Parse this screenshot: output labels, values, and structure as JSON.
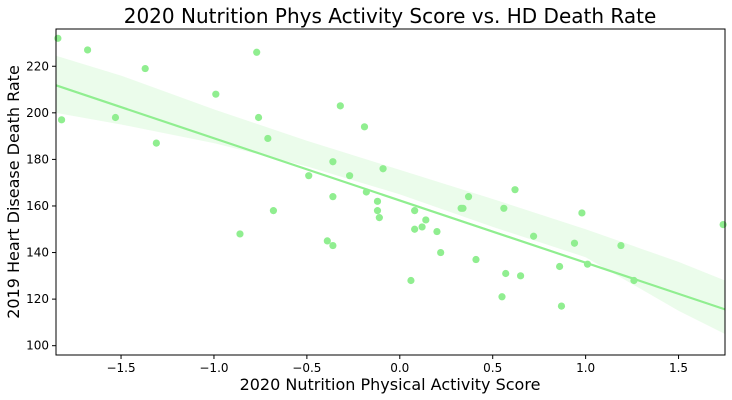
{
  "chart_data": {
    "type": "scatter",
    "title": "2020 Nutrition Phys Activity Score vs. HD Death Rate",
    "xlabel": "2020 Nutrition Physical Activity Score",
    "ylabel": "2019 Heart Disease Death Rate",
    "xlim": [
      -1.85,
      1.75
    ],
    "ylim": [
      96,
      236
    ],
    "x_ticks": [
      -1.5,
      -1.0,
      -0.5,
      0.0,
      0.5,
      1.0,
      1.5
    ],
    "x_tick_labels": [
      "−1.5",
      "−1.0",
      "−0.5",
      "0.0",
      "0.5",
      "1.0",
      "1.5"
    ],
    "y_ticks": [
      100,
      120,
      140,
      160,
      180,
      200,
      220
    ],
    "y_tick_labels": [
      "100",
      "120",
      "140",
      "160",
      "180",
      "200",
      "220"
    ],
    "grid": false,
    "legend": "none",
    "colors": {
      "points": "#90ee90",
      "fit_line": "#90ee90",
      "confidence_band": "#90ee90"
    },
    "points": [
      {
        "x": -1.84,
        "y": 232
      },
      {
        "x": -1.82,
        "y": 197
      },
      {
        "x": -1.68,
        "y": 227
      },
      {
        "x": -1.53,
        "y": 198
      },
      {
        "x": -1.37,
        "y": 219
      },
      {
        "x": -1.31,
        "y": 187
      },
      {
        "x": -0.99,
        "y": 208
      },
      {
        "x": -0.86,
        "y": 148
      },
      {
        "x": -0.77,
        "y": 226
      },
      {
        "x": -0.76,
        "y": 198
      },
      {
        "x": -0.71,
        "y": 189
      },
      {
        "x": -0.68,
        "y": 158
      },
      {
        "x": -0.49,
        "y": 173
      },
      {
        "x": -0.39,
        "y": 145
      },
      {
        "x": -0.36,
        "y": 143
      },
      {
        "x": -0.36,
        "y": 179
      },
      {
        "x": -0.36,
        "y": 164
      },
      {
        "x": -0.32,
        "y": 203
      },
      {
        "x": -0.27,
        "y": 173
      },
      {
        "x": -0.19,
        "y": 194
      },
      {
        "x": -0.18,
        "y": 166
      },
      {
        "x": -0.12,
        "y": 162
      },
      {
        "x": -0.12,
        "y": 158
      },
      {
        "x": -0.11,
        "y": 155
      },
      {
        "x": -0.09,
        "y": 176
      },
      {
        "x": 0.06,
        "y": 128
      },
      {
        "x": 0.08,
        "y": 158
      },
      {
        "x": 0.08,
        "y": 150
      },
      {
        "x": 0.12,
        "y": 151
      },
      {
        "x": 0.14,
        "y": 154
      },
      {
        "x": 0.2,
        "y": 149
      },
      {
        "x": 0.22,
        "y": 140
      },
      {
        "x": 0.33,
        "y": 159
      },
      {
        "x": 0.34,
        "y": 159
      },
      {
        "x": 0.37,
        "y": 164
      },
      {
        "x": 0.41,
        "y": 137
      },
      {
        "x": 0.55,
        "y": 121
      },
      {
        "x": 0.56,
        "y": 159
      },
      {
        "x": 0.57,
        "y": 131
      },
      {
        "x": 0.62,
        "y": 167
      },
      {
        "x": 0.65,
        "y": 130
      },
      {
        "x": 0.72,
        "y": 147
      },
      {
        "x": 0.86,
        "y": 134
      },
      {
        "x": 0.87,
        "y": 117
      },
      {
        "x": 0.94,
        "y": 144
      },
      {
        "x": 0.98,
        "y": 157
      },
      {
        "x": 1.01,
        "y": 135
      },
      {
        "x": 1.19,
        "y": 143
      },
      {
        "x": 1.26,
        "y": 128
      },
      {
        "x": 1.74,
        "y": 152
      }
    ],
    "fit_line": {
      "x": [
        -1.85,
        1.75
      ],
      "y": [
        211.8,
        115.6
      ]
    },
    "confidence_band": {
      "x": [
        -1.85,
        -1.5,
        -1.0,
        -0.5,
        0.0,
        0.5,
        1.0,
        1.5,
        1.75
      ],
      "upper": [
        224.5,
        216.0,
        201.5,
        188.0,
        175.5,
        163.0,
        150.0,
        136.0,
        128.0
      ],
      "lower": [
        200.0,
        195.0,
        187.0,
        177.0,
        165.0,
        151.0,
        138.0,
        115.0,
        105.0
      ]
    }
  }
}
